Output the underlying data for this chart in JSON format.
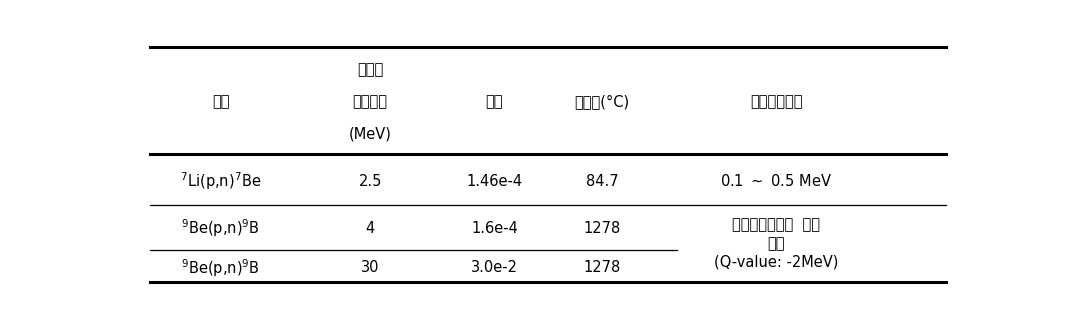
{
  "header_row1_col1": "양성자",
  "header_row2": [
    "반응",
    "빔에너지",
    "수율",
    "녹는점(°C)",
    "중성자에너지"
  ],
  "header_row3_col1": "(MeV)",
  "row1": [
    "$^{7}$Li(p,n)$^{7}$Be",
    "2.5",
    "1.46e-4",
    "84.7",
    "0.1 ～ 0.5 MeV"
  ],
  "row2": [
    "$^{9}$Be(p,n)$^{9}$B",
    "4",
    "1.6e-4",
    "1278"
  ],
  "row2_col4_lines": [
    "양성자에너지에  따라",
    "변함",
    "(Q-value: -2MeV)"
  ],
  "row3": [
    "$^{9}$Be(p,n)$^{9}$B",
    "30",
    "3.0e-2",
    "1278"
  ],
  "background_color": "#ffffff",
  "text_color": "#000000"
}
